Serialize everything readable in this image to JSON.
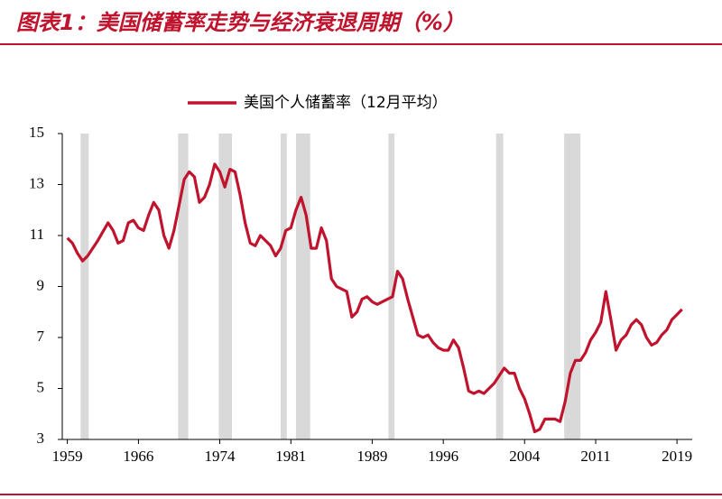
{
  "chart_data": {
    "type": "line",
    "title": "图表1：美国储蓄率走势与经济衰退周期（%）",
    "x": [
      1959,
      1959.5,
      1960,
      1960.5,
      1961,
      1962,
      1963,
      1963.5,
      1964,
      1964.5,
      1965,
      1965.5,
      1966,
      1966.5,
      1967,
      1967.5,
      1968,
      1968.5,
      1969,
      1969.5,
      1970,
      1970.5,
      1971,
      1971.5,
      1972,
      1972.5,
      1973,
      1973.5,
      1974,
      1974.5,
      1975,
      1975.5,
      1976,
      1976.5,
      1977,
      1977.5,
      1978,
      1978.5,
      1979,
      1979.5,
      1980,
      1980.5,
      1981,
      1981.5,
      1982,
      1982.5,
      1983,
      1983.5,
      1984,
      1984.5,
      1985,
      1985.5,
      1986,
      1986.5,
      1987,
      1987.5,
      1988,
      1988.5,
      1989,
      1989.5,
      1990,
      1990.5,
      1991,
      1991.5,
      1992,
      1992.5,
      1993,
      1993.5,
      1994,
      1994.5,
      1995,
      1995.5,
      1996,
      1996.5,
      1997,
      1997.5,
      1998,
      1998.5,
      1999,
      1999.5,
      2000,
      2000.5,
      2001,
      2001.5,
      2002,
      2002.5,
      2003,
      2003.5,
      2004,
      2004.5,
      2005,
      2005.5,
      2006,
      2006.5,
      2007,
      2007.5,
      2008,
      2008.5,
      2009,
      2009.5,
      2010,
      2010.5,
      2011,
      2011.5,
      2012,
      2012.5,
      2013,
      2013.5,
      2014,
      2014.5,
      2015,
      2015.5,
      2016,
      2016.5,
      2017,
      2017.5,
      2018,
      2018.5,
      2019,
      2019.5
    ],
    "series": [
      {
        "name": "美国个人储蓄率（12月平均）",
        "color": "#c0142e",
        "values": [
          10.9,
          10.7,
          10.3,
          10.0,
          10.2,
          10.8,
          11.5,
          11.2,
          10.7,
          10.8,
          11.5,
          11.6,
          11.3,
          11.2,
          11.8,
          12.3,
          12.0,
          11.0,
          10.5,
          11.2,
          12.2,
          13.2,
          13.5,
          13.3,
          12.3,
          12.5,
          13.0,
          13.8,
          13.5,
          12.9,
          13.6,
          13.5,
          12.6,
          11.5,
          10.7,
          10.6,
          11.0,
          10.8,
          10.6,
          10.2,
          10.5,
          11.2,
          11.3,
          12.0,
          12.5,
          11.8,
          10.5,
          10.5,
          11.3,
          10.8,
          9.3,
          9.0,
          8.9,
          8.8,
          7.8,
          8.0,
          8.5,
          8.6,
          8.4,
          8.3,
          8.4,
          8.5,
          8.6,
          9.6,
          9.3,
          8.5,
          7.8,
          7.1,
          7.0,
          7.1,
          6.8,
          6.6,
          6.5,
          6.5,
          6.9,
          6.6,
          5.8,
          4.9,
          4.8,
          4.9,
          4.8,
          5.0,
          5.2,
          5.5,
          5.8,
          5.6,
          5.6,
          5.0,
          4.6,
          4.0,
          3.3,
          3.4,
          3.8,
          3.8,
          3.8,
          3.7,
          4.5,
          5.6,
          6.1,
          6.1,
          6.4,
          6.9,
          7.2,
          7.6,
          8.8,
          7.7,
          6.5,
          6.9,
          7.1,
          7.5,
          7.7,
          7.5,
          7.0,
          6.7,
          6.8,
          7.1,
          7.3,
          7.7,
          7.9,
          8.1
        ]
      }
    ],
    "recessions": [
      [
        1960.3,
        1961.1
      ],
      [
        1969.9,
        1970.9
      ],
      [
        1973.9,
        1975.2
      ],
      [
        1980.0,
        1980.6
      ],
      [
        1981.5,
        1982.9
      ],
      [
        1990.6,
        1991.2
      ],
      [
        2001.2,
        2001.9
      ],
      [
        2007.9,
        2009.5
      ]
    ],
    "recession_color": "#d9d9d9",
    "xlim": [
      1958.5,
      2020.5
    ],
    "xticks": [
      1959,
      1966,
      1974,
      1981,
      1989,
      1996,
      2004,
      2011,
      2019
    ],
    "ylim": [
      3,
      15
    ],
    "yticks": [
      3,
      5,
      7,
      9,
      11,
      13,
      15
    ]
  }
}
